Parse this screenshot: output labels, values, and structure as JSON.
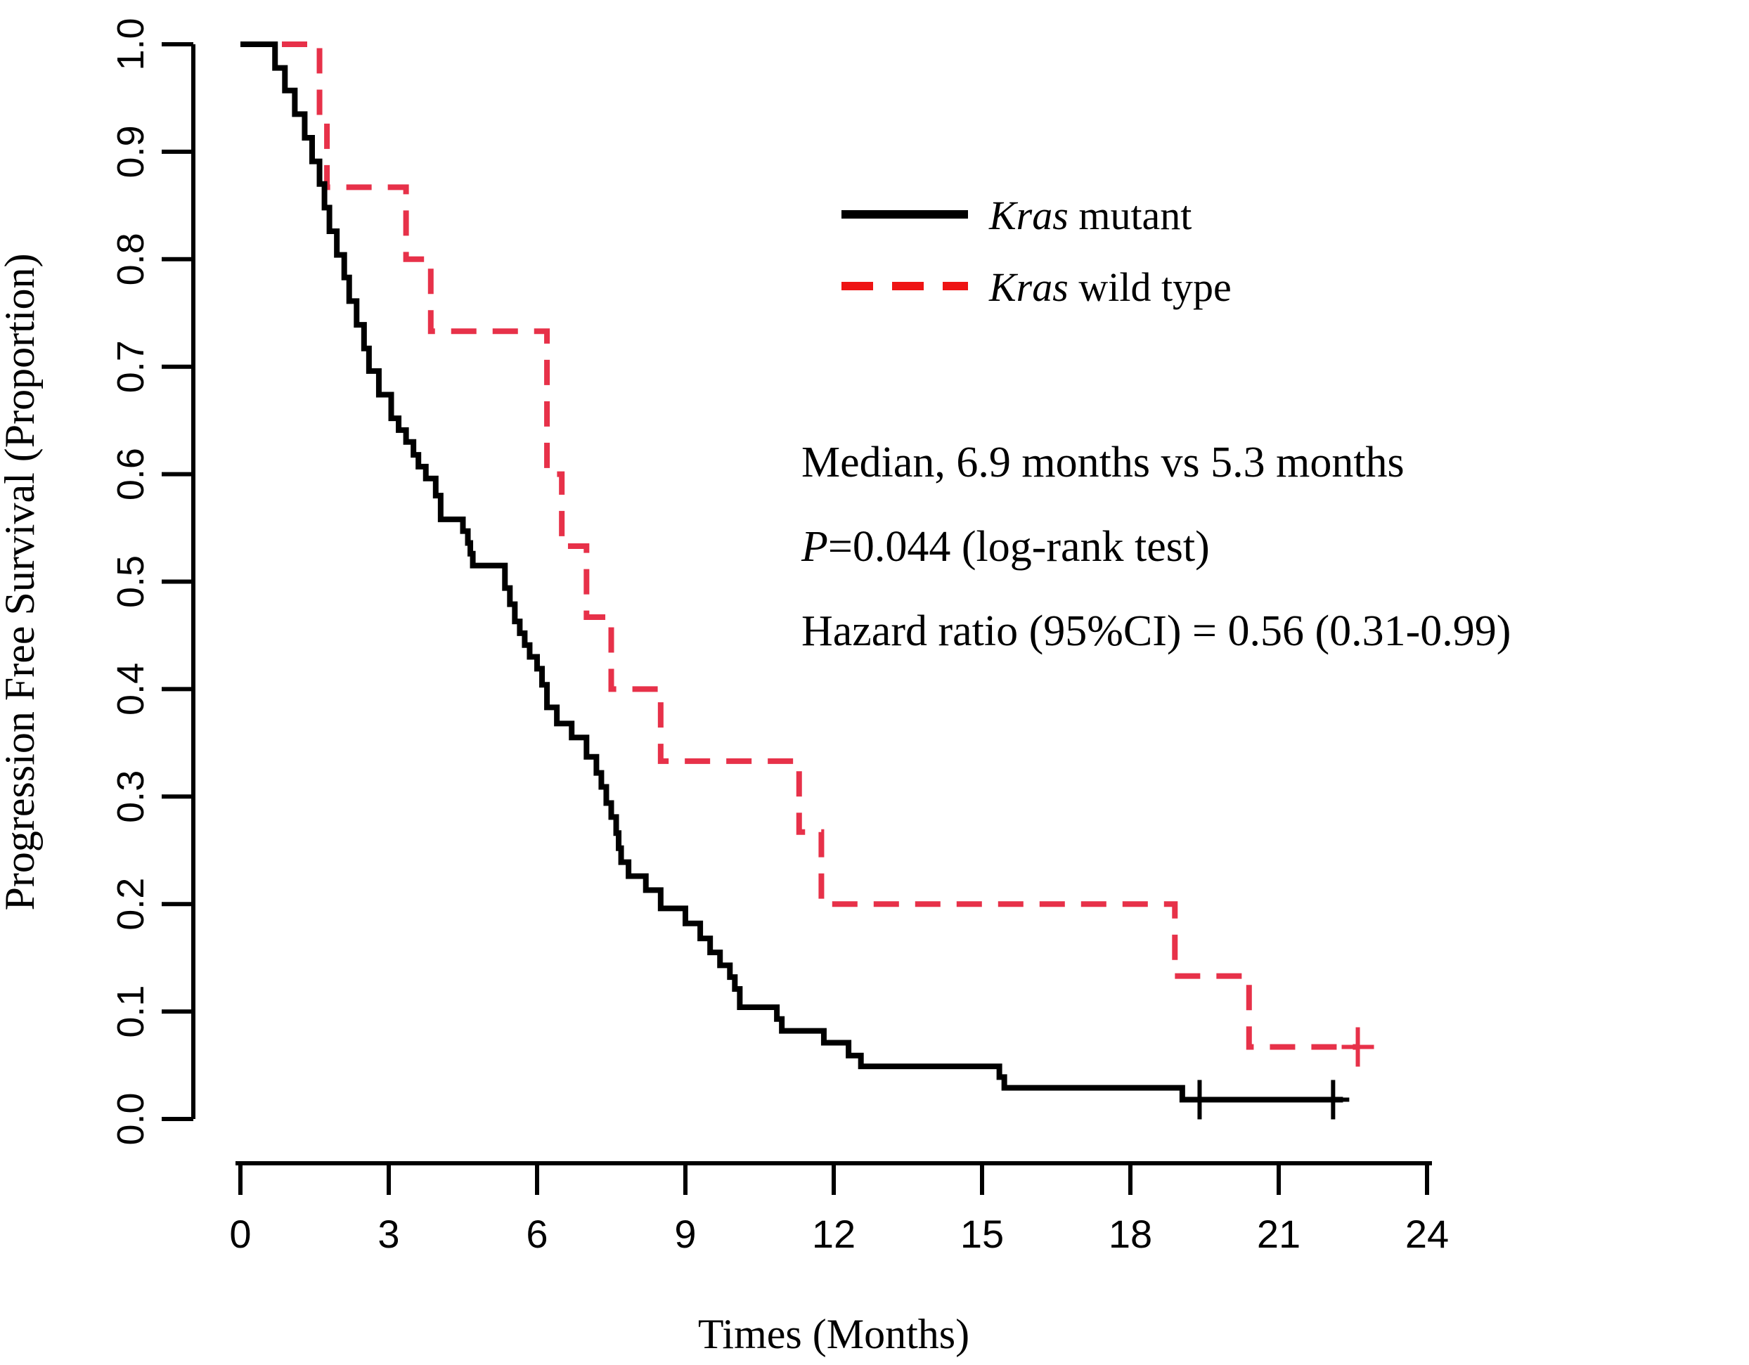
{
  "figure": {
    "background": "#ffffff"
  },
  "chart_data": {
    "type": "line",
    "subtype": "kaplan-meier-step-curve",
    "title": "",
    "xlabel": "Times (Months)",
    "ylabel": "Progression Free Survival (Proportion)",
    "xlim": [
      0,
      24
    ],
    "ylim": [
      0.0,
      1.0
    ],
    "xticks": [
      "0",
      "3",
      "6",
      "9",
      "12",
      "15",
      "18",
      "21",
      "24"
    ],
    "xtick_values": [
      0,
      3,
      6,
      9,
      12,
      15,
      18,
      21,
      24
    ],
    "yticks": [
      "0.0",
      "0.1",
      "0.2",
      "0.3",
      "0.4",
      "0.5",
      "0.6",
      "0.7",
      "0.8",
      "0.9",
      "1.0"
    ],
    "ytick_values": [
      0.0,
      0.1,
      0.2,
      0.3,
      0.4,
      0.5,
      0.6,
      0.7,
      0.8,
      0.9,
      1.0
    ],
    "grid": false,
    "legend_position": "inside-upper-right",
    "series": [
      {
        "name": "Kras mutant",
        "name_parts": [
          {
            "text": "Kras",
            "italic": true
          },
          {
            "text": " mutant",
            "italic": false
          }
        ],
        "color": "#000000",
        "legend_color": "#000000",
        "line_style": "solid",
        "start": [
          0,
          1.0
        ],
        "steps": [
          [
            0.7,
            0.978
          ],
          [
            0.9,
            0.957
          ],
          [
            1.1,
            0.935
          ],
          [
            1.3,
            0.913
          ],
          [
            1.45,
            0.891
          ],
          [
            1.6,
            0.87
          ],
          [
            1.7,
            0.848
          ],
          [
            1.8,
            0.826
          ],
          [
            1.95,
            0.804
          ],
          [
            2.1,
            0.783
          ],
          [
            2.2,
            0.761
          ],
          [
            2.35,
            0.739
          ],
          [
            2.5,
            0.717
          ],
          [
            2.6,
            0.696
          ],
          [
            2.8,
            0.674
          ],
          [
            3.05,
            0.652
          ],
          [
            3.2,
            0.641
          ],
          [
            3.35,
            0.63
          ],
          [
            3.5,
            0.618
          ],
          [
            3.6,
            0.607
          ],
          [
            3.75,
            0.596
          ],
          [
            3.95,
            0.58
          ],
          [
            4.05,
            0.558
          ],
          [
            4.5,
            0.547
          ],
          [
            4.6,
            0.536
          ],
          [
            4.65,
            0.526
          ],
          [
            4.7,
            0.515
          ],
          [
            5.35,
            0.494
          ],
          [
            5.45,
            0.479
          ],
          [
            5.55,
            0.463
          ],
          [
            5.65,
            0.452
          ],
          [
            5.75,
            0.441
          ],
          [
            5.85,
            0.43
          ],
          [
            6.0,
            0.419
          ],
          [
            6.1,
            0.404
          ],
          [
            6.2,
            0.383
          ],
          [
            6.4,
            0.368
          ],
          [
            6.7,
            0.355
          ],
          [
            7.0,
            0.337
          ],
          [
            7.2,
            0.322
          ],
          [
            7.3,
            0.309
          ],
          [
            7.4,
            0.294
          ],
          [
            7.5,
            0.281
          ],
          [
            7.6,
            0.266
          ],
          [
            7.65,
            0.252
          ],
          [
            7.7,
            0.239
          ],
          [
            7.85,
            0.226
          ],
          [
            8.2,
            0.213
          ],
          [
            8.5,
            0.196
          ],
          [
            9.0,
            0.182
          ],
          [
            9.3,
            0.168
          ],
          [
            9.5,
            0.155
          ],
          [
            9.7,
            0.143
          ],
          [
            9.9,
            0.132
          ],
          [
            10.0,
            0.121
          ],
          [
            10.1,
            0.104
          ],
          [
            10.85,
            0.093
          ],
          [
            10.95,
            0.082
          ],
          [
            11.8,
            0.071
          ],
          [
            12.3,
            0.059
          ],
          [
            12.55,
            0.049
          ],
          [
            15.35,
            0.039
          ],
          [
            15.45,
            0.029
          ],
          [
            19.05,
            0.018
          ]
        ],
        "end_time": 22.3,
        "censor_marks": [
          [
            19.4,
            0.018
          ],
          [
            22.1,
            0.018
          ]
        ],
        "median_months": 5.3
      },
      {
        "name": "Kras wild type",
        "name_parts": [
          {
            "text": "Kras",
            "italic": true
          },
          {
            "text": " wild type",
            "italic": false
          }
        ],
        "color": "#e73149",
        "legend_color": "#ee1414",
        "line_style": "dashed",
        "start": [
          0,
          1.0
        ],
        "steps": [
          [
            1.6,
            0.933
          ],
          [
            1.75,
            0.867
          ],
          [
            3.35,
            0.8
          ],
          [
            3.85,
            0.733
          ],
          [
            6.2,
            0.6
          ],
          [
            6.5,
            0.533
          ],
          [
            7.0,
            0.467
          ],
          [
            7.5,
            0.4
          ],
          [
            8.5,
            0.333
          ],
          [
            11.3,
            0.267
          ],
          [
            11.75,
            0.2
          ],
          [
            18.9,
            0.133
          ],
          [
            20.4,
            0.067
          ]
        ],
        "end_time": 22.6,
        "censor_marks": [
          [
            22.6,
            0.067
          ]
        ],
        "median_months": 6.9
      }
    ],
    "annotations": [
      {
        "parts": [
          {
            "text": "Median, 6.9 months vs 5.3 months",
            "italic": false
          }
        ]
      },
      {
        "parts": [
          {
            "text": "P",
            "italic": true
          },
          {
            "text": "=0.044 (log-rank test)",
            "italic": false
          }
        ]
      },
      {
        "parts": [
          {
            "text": "Hazard ratio (95%CI) = 0.56 (0.31-0.99)",
            "italic": false
          }
        ]
      }
    ]
  }
}
